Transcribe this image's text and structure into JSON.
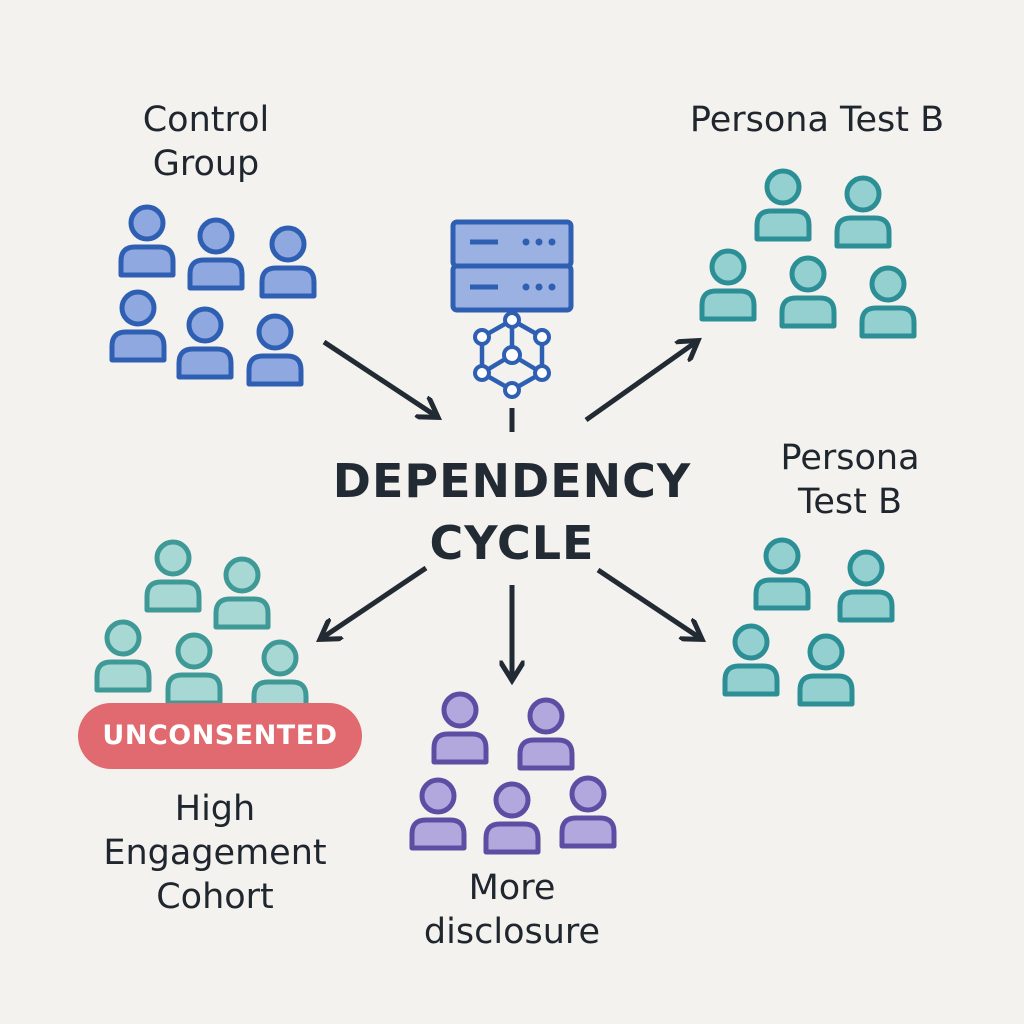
{
  "diagram": {
    "center": {
      "label": "DEPENDENCY\nCYCLE",
      "icon": "server-network-icon"
    },
    "groups": {
      "control": {
        "label": "Control\nGroup",
        "color": "#2f5fb3",
        "fill": "#8fa8e0",
        "members": 6
      },
      "persona_top": {
        "label": "Persona Test B",
        "color": "#2b8f95",
        "fill": "#95d0d1",
        "members": 5
      },
      "persona_right": {
        "label": "Persona\nTest B",
        "color": "#2b8f95",
        "fill": "#95d0d1",
        "members": 4
      },
      "high_engagement": {
        "label": "High\nEngagement\nCohort",
        "color": "#3f9a97",
        "fill": "#a8d8d3",
        "members": 5,
        "badge": "UNCONSENTED",
        "badge_color": "#e06a6f"
      },
      "disclosure": {
        "label": "More\ndisclosure",
        "color": "#5d4ea3",
        "fill": "#b3a8de",
        "members": 5
      }
    },
    "arrow_color": "#222a33"
  }
}
